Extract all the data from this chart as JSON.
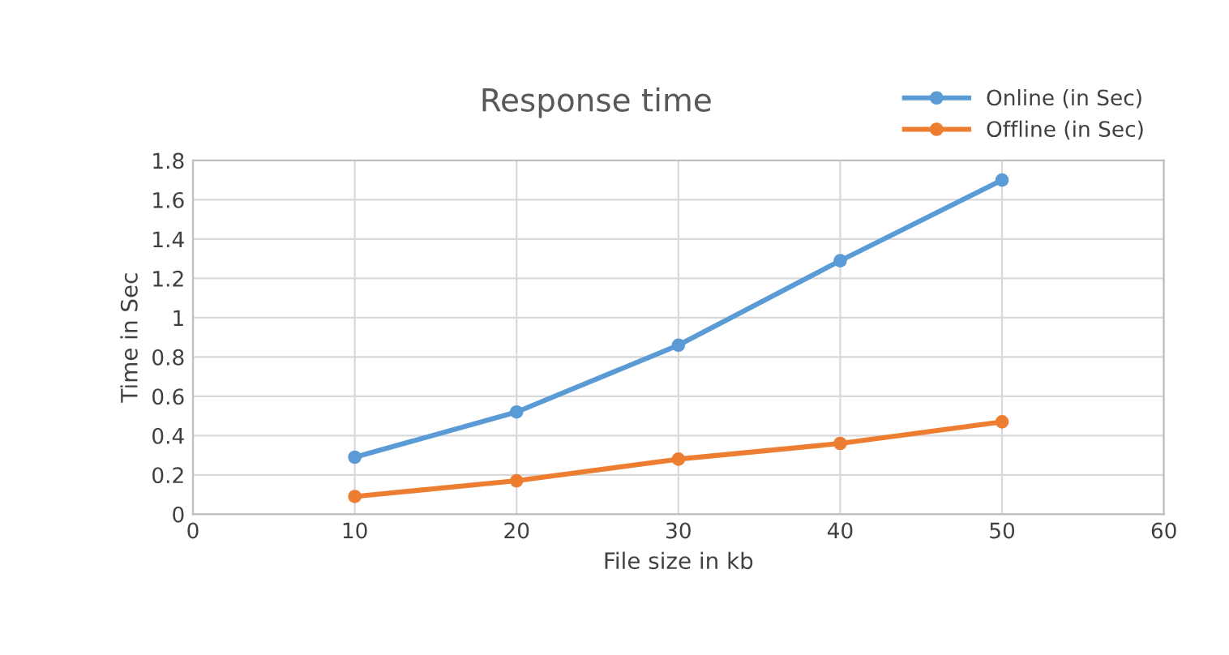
{
  "chart_data": {
    "type": "line",
    "title": "Response time",
    "xlabel": "File size in kb",
    "ylabel": "Time in Sec",
    "x": [
      10,
      20,
      30,
      40,
      50
    ],
    "series": [
      {
        "name": "Online (in Sec)",
        "color": "#5b9bd5",
        "values": [
          0.29,
          0.52,
          0.86,
          1.29,
          1.7
        ]
      },
      {
        "name": "Offline (in Sec)",
        "color": "#ed7d31",
        "values": [
          0.09,
          0.17,
          0.28,
          0.36,
          0.47
        ]
      }
    ],
    "xlim": [
      0,
      60
    ],
    "xticks": [
      0,
      10,
      20,
      30,
      40,
      50,
      60
    ],
    "ylim": [
      0,
      1.8
    ],
    "yticks": [
      0,
      {
        "value": 0.2,
        "label": "0.2"
      },
      {
        "value": 0.4,
        "label": "0.4"
      },
      {
        "value": 0.6,
        "label": "0.6"
      },
      {
        "value": 0.8,
        "label": "0.8"
      },
      1,
      {
        "value": 1.2,
        "label": "1.2"
      },
      {
        "value": 1.4,
        "label": "1.4"
      },
      {
        "value": 1.6,
        "label": "1.6"
      },
      {
        "value": 1.8,
        "label": "1.8"
      }
    ],
    "grid": true,
    "legend": "top right",
    "marker": "circle",
    "line_style": "solid"
  }
}
